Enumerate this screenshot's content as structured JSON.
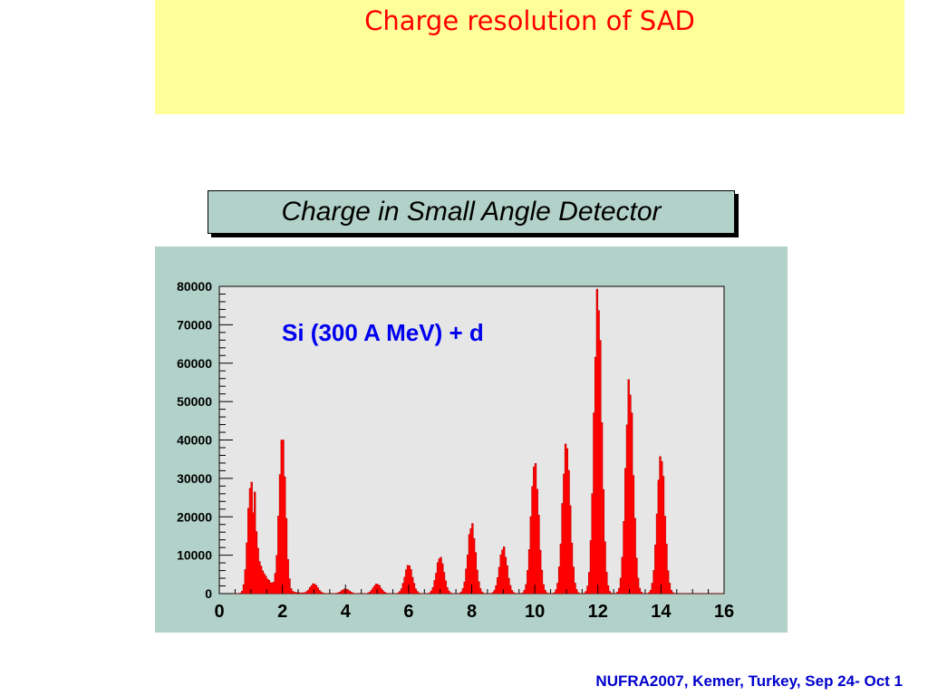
{
  "slide": {
    "title": "Charge resolution of SAD",
    "footer": "NUFRA2007, Kemer, Turkey, Sep 24- Oct 1"
  },
  "colors": {
    "header_band": "#ffff99",
    "title": "#ff0000",
    "panel": "#b2d2c9",
    "plot_bg": "#e6e6e6",
    "histogram": "#ff0000",
    "annotation": "#0000ee",
    "footer": "#0000cc"
  },
  "chart_data": {
    "type": "bar",
    "title": "Charge in Small Angle Detector",
    "annotation": "Si (300 A MeV) + d",
    "xlim": [
      0,
      16
    ],
    "ylim": [
      0,
      80000
    ],
    "x_ticks": [
      "0",
      "2",
      "4",
      "6",
      "8",
      "10",
      "12",
      "14",
      "16"
    ],
    "y_ticks": [
      "0",
      "10000",
      "20000",
      "30000",
      "40000",
      "50000",
      "60000",
      "70000",
      "80000"
    ],
    "grid": false,
    "legend": "none",
    "peaks": [
      {
        "x": 1.0,
        "value": 29000
      },
      {
        "x": 2.0,
        "value": 40000
      },
      {
        "x": 3.0,
        "value": 2500
      },
      {
        "x": 4.0,
        "value": 1200
      },
      {
        "x": 5.0,
        "value": 2500
      },
      {
        "x": 6.0,
        "value": 7500
      },
      {
        "x": 7.0,
        "value": 9500
      },
      {
        "x": 8.0,
        "value": 18000
      },
      {
        "x": 9.0,
        "value": 12000
      },
      {
        "x": 10.0,
        "value": 34000
      },
      {
        "x": 11.0,
        "value": 39000
      },
      {
        "x": 12.0,
        "value": 78000
      },
      {
        "x": 13.0,
        "value": 55000
      },
      {
        "x": 14.0,
        "value": 36000
      }
    ]
  }
}
